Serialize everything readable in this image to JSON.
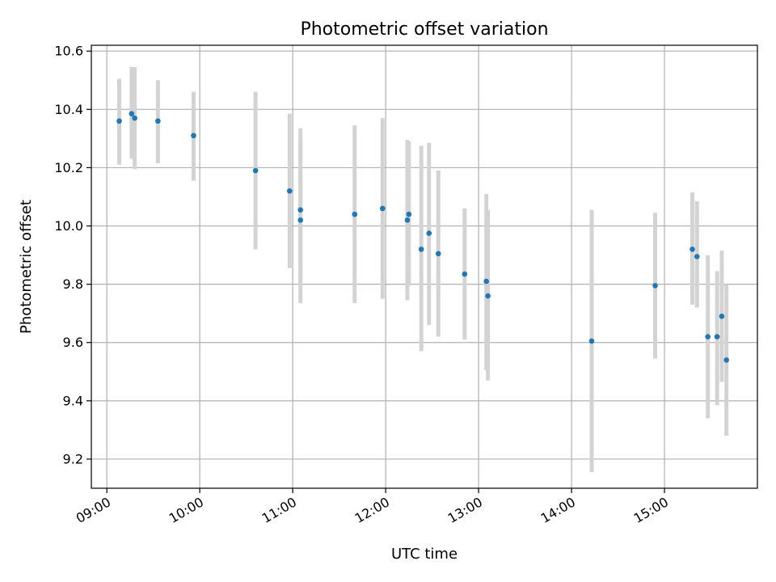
{
  "chart_data": {
    "type": "scatter",
    "title": "Photometric offset variation",
    "xlabel": "UTC time",
    "ylabel": "Photometric offset",
    "x_ticks": [
      "09:00",
      "10:00",
      "11:00",
      "12:00",
      "13:00",
      "14:00",
      "15:00"
    ],
    "y_ticks": [
      "9.2",
      "9.4",
      "9.6",
      "9.8",
      "10.0",
      "10.2",
      "10.4",
      "10.6"
    ],
    "xlim": [
      "08:50",
      "16:00"
    ],
    "ylim": [
      9.1,
      10.62
    ],
    "grid": true,
    "colors": {
      "point": "#1f77b4",
      "errorbar": "#d3d3d3",
      "grid": "#b0b0b0"
    },
    "points": [
      {
        "x": "09:08",
        "y": 10.36,
        "ylow": 10.21,
        "yhigh": 10.505
      },
      {
        "x": "09:16",
        "y": 10.385,
        "ylow": 10.23,
        "yhigh": 10.545
      },
      {
        "x": "09:18",
        "y": 10.37,
        "ylow": 10.195,
        "yhigh": 10.545
      },
      {
        "x": "09:33",
        "y": 10.36,
        "ylow": 10.215,
        "yhigh": 10.5
      },
      {
        "x": "09:56",
        "y": 10.31,
        "ylow": 10.155,
        "yhigh": 10.46
      },
      {
        "x": "10:36",
        "y": 10.19,
        "ylow": 9.92,
        "yhigh": 10.46
      },
      {
        "x": "10:58",
        "y": 10.12,
        "ylow": 9.855,
        "yhigh": 10.385
      },
      {
        "x": "11:05",
        "y": 10.055,
        "ylow": 9.8,
        "yhigh": 10.335
      },
      {
        "x": "11:05",
        "y": 10.02,
        "ylow": 9.735,
        "yhigh": 10.3
      },
      {
        "x": "11:40",
        "y": 10.04,
        "ylow": 9.735,
        "yhigh": 10.345
      },
      {
        "x": "11:58",
        "y": 10.06,
        "ylow": 9.75,
        "yhigh": 10.37
      },
      {
        "x": "12:14",
        "y": 10.02,
        "ylow": 9.745,
        "yhigh": 10.295
      },
      {
        "x": "12:15",
        "y": 10.04,
        "ylow": 9.795,
        "yhigh": 10.29
      },
      {
        "x": "12:23",
        "y": 9.92,
        "ylow": 9.57,
        "yhigh": 10.275
      },
      {
        "x": "12:28",
        "y": 9.975,
        "ylow": 9.66,
        "yhigh": 10.285
      },
      {
        "x": "12:34",
        "y": 9.905,
        "ylow": 9.62,
        "yhigh": 10.19
      },
      {
        "x": "12:51",
        "y": 9.835,
        "ylow": 9.61,
        "yhigh": 10.06
      },
      {
        "x": "13:05",
        "y": 9.81,
        "ylow": 9.505,
        "yhigh": 10.11
      },
      {
        "x": "13:06",
        "y": 9.76,
        "ylow": 9.47,
        "yhigh": 10.055
      },
      {
        "x": "14:13",
        "y": 9.605,
        "ylow": 9.155,
        "yhigh": 10.055
      },
      {
        "x": "14:54",
        "y": 9.795,
        "ylow": 9.545,
        "yhigh": 10.045
      },
      {
        "x": "15:18",
        "y": 9.92,
        "ylow": 9.73,
        "yhigh": 10.115
      },
      {
        "x": "15:21",
        "y": 9.895,
        "ylow": 9.72,
        "yhigh": 10.085
      },
      {
        "x": "15:28",
        "y": 9.62,
        "ylow": 9.34,
        "yhigh": 9.9
      },
      {
        "x": "15:34",
        "y": 9.62,
        "ylow": 9.385,
        "yhigh": 9.845
      },
      {
        "x": "15:37",
        "y": 9.69,
        "ylow": 9.465,
        "yhigh": 9.915
      },
      {
        "x": "15:40",
        "y": 9.54,
        "ylow": 9.28,
        "yhigh": 9.8
      }
    ]
  }
}
